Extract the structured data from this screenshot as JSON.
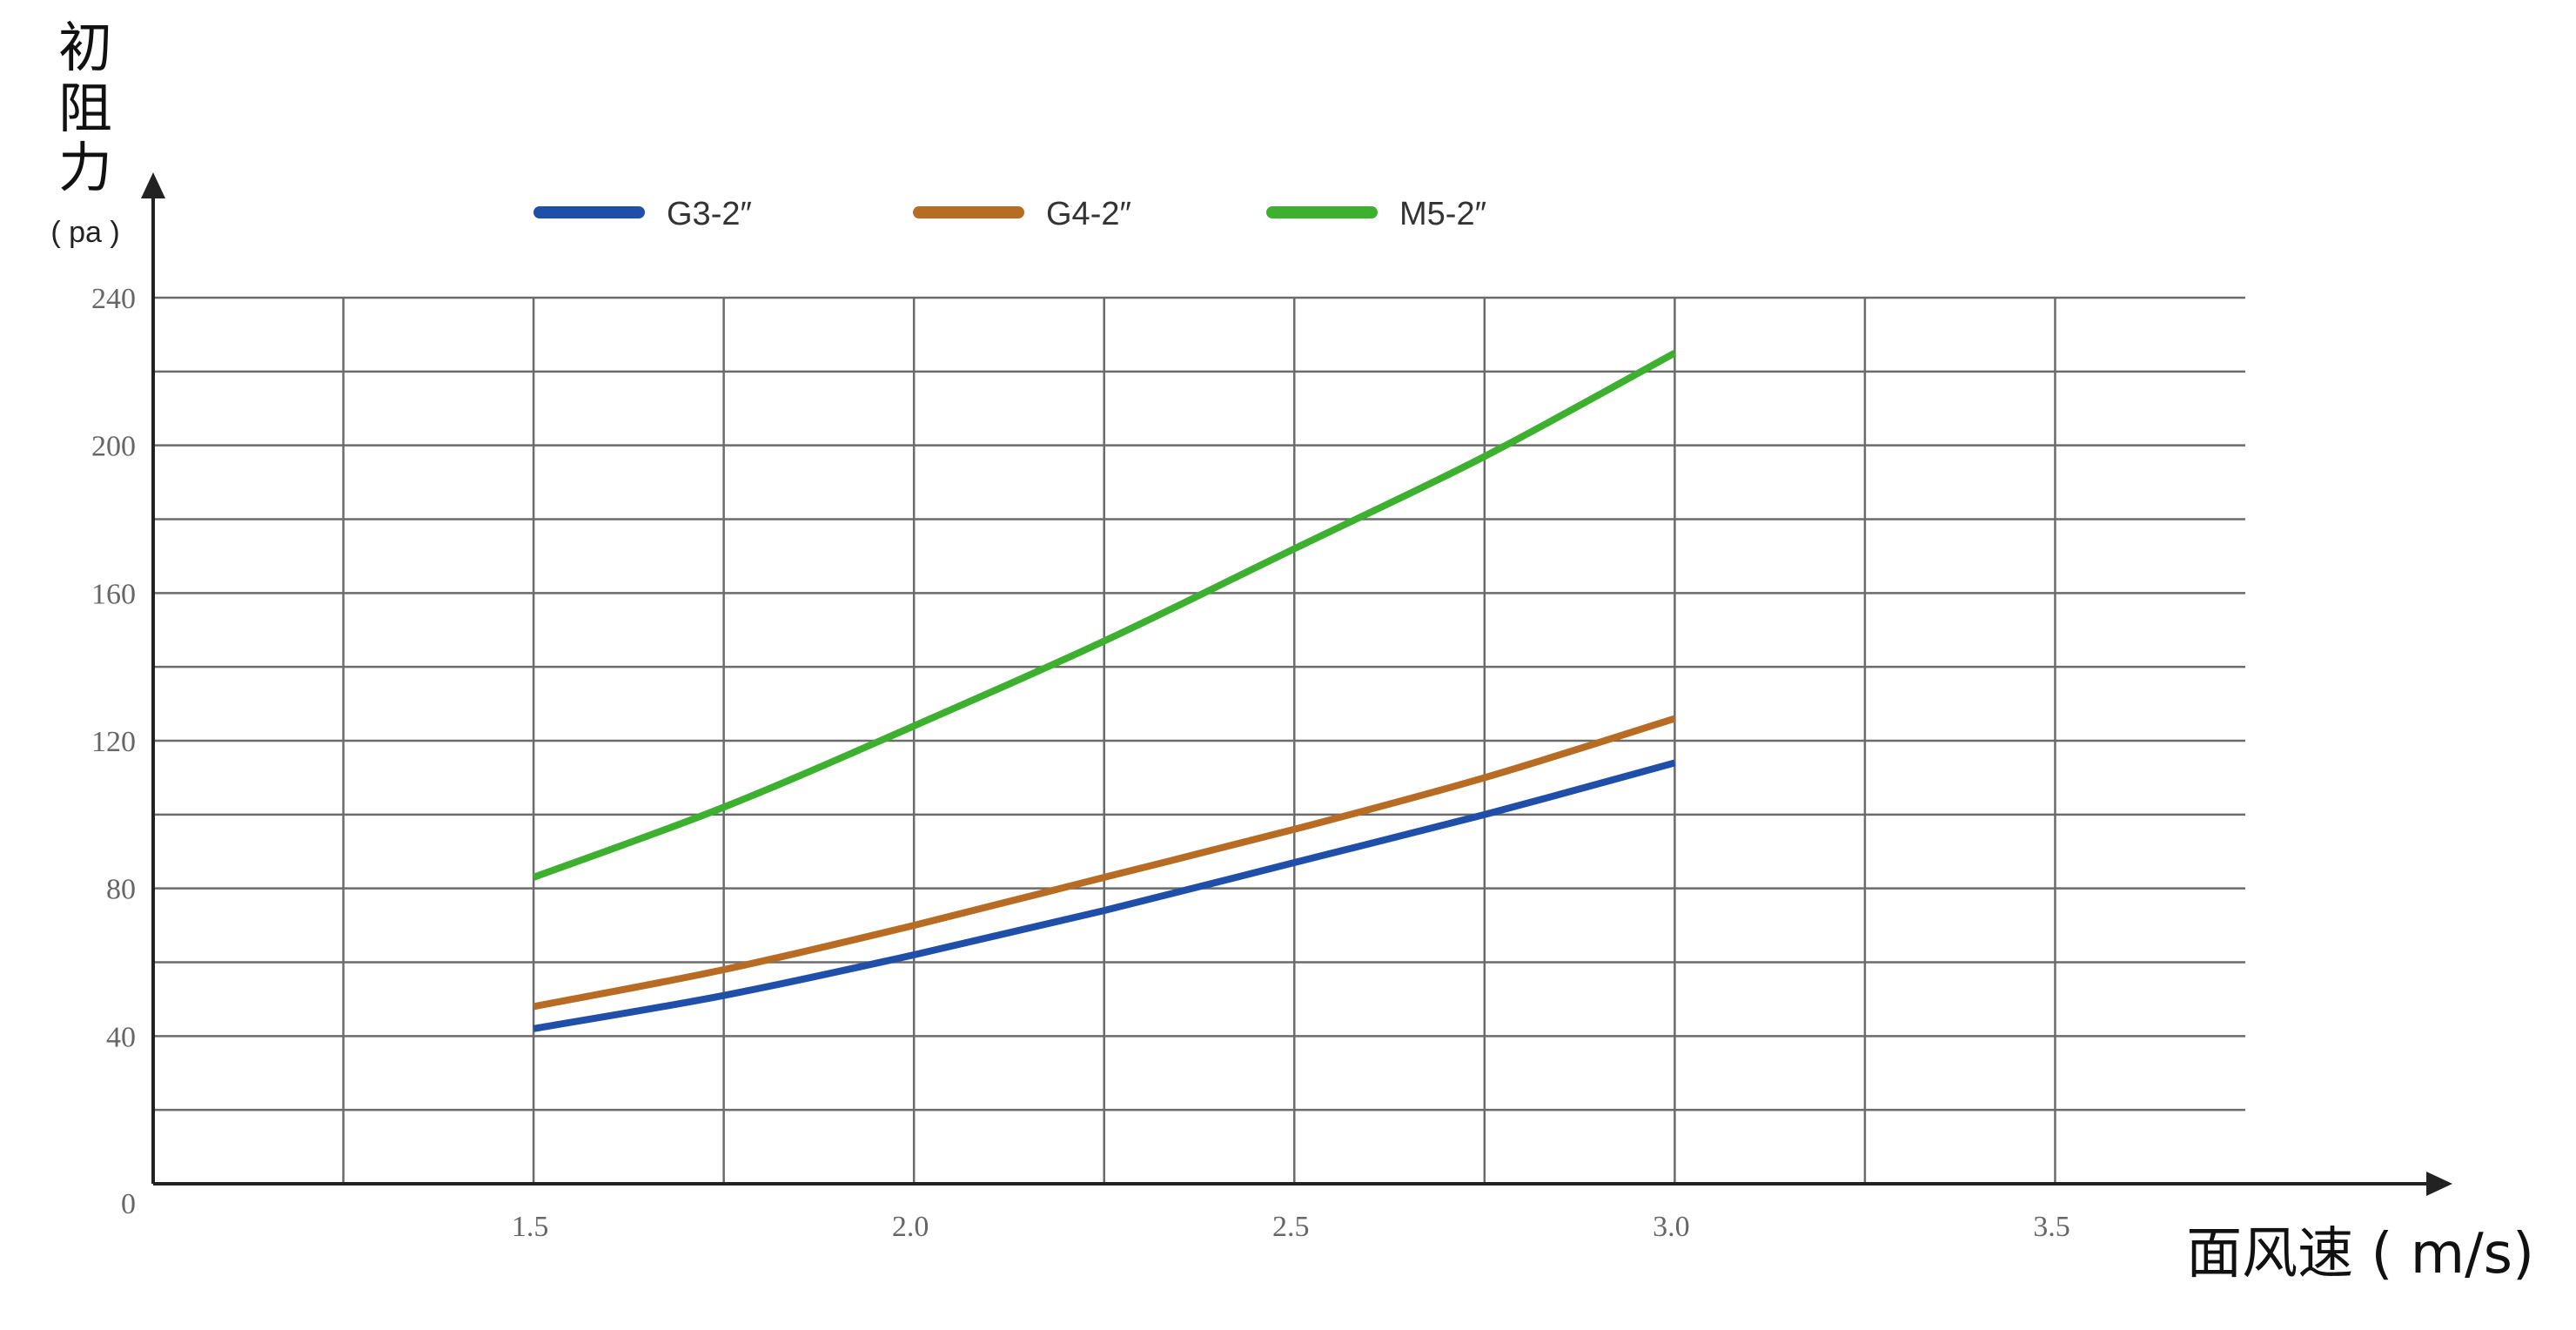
{
  "chart_data": {
    "type": "line",
    "ylabel_chars": [
      "初",
      "阻",
      "力"
    ],
    "yunit": "( pa )",
    "xlabel": "面风速 ( m/s)",
    "x_ticks": [
      "1.5",
      "2.0",
      "2.5",
      "3.0",
      "3.5"
    ],
    "y_ticks": [
      "0",
      "40",
      "80",
      "120",
      "160",
      "200",
      "240"
    ],
    "xlim": [
      1.0,
      3.75
    ],
    "ylim": [
      0,
      240
    ],
    "grid": true,
    "legend": "top",
    "series": [
      {
        "name": "G3-2″",
        "color": "#1f4fa8",
        "x": [
          1.5,
          1.75,
          2.0,
          2.25,
          2.5,
          2.75,
          3.0
        ],
        "y": [
          42,
          51,
          62,
          74,
          87,
          100,
          114
        ]
      },
      {
        "name": "G4-2″",
        "color": "#b86b22",
        "x": [
          1.5,
          1.75,
          2.0,
          2.25,
          2.5,
          2.75,
          3.0
        ],
        "y": [
          48,
          58,
          70,
          83,
          96,
          110,
          126
        ]
      },
      {
        "name": "M5-2″",
        "color": "#3db030",
        "x": [
          1.5,
          1.75,
          2.0,
          2.25,
          2.5,
          2.75,
          3.0
        ],
        "y": [
          83,
          102,
          124,
          147,
          172,
          197,
          225
        ]
      }
    ]
  }
}
